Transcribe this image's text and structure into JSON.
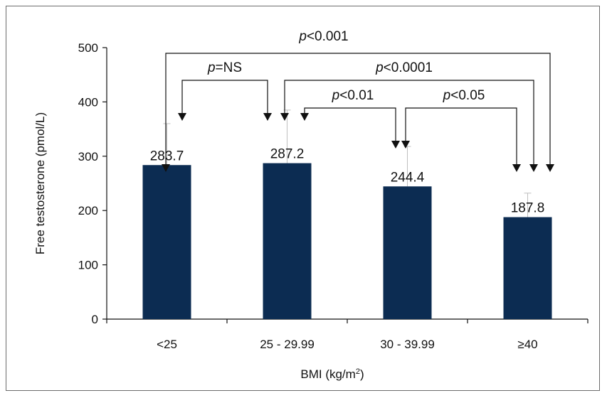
{
  "chart_data": {
    "type": "bar",
    "title": "",
    "xlabel": "BMI (kg/m²)",
    "ylabel": "Free testosterone (pmol/L)",
    "ylim": [
      0,
      500
    ],
    "yticks": [
      0,
      100,
      200,
      300,
      400,
      500
    ],
    "categories": [
      "<25",
      "25 - 29.99",
      "30 - 39.99",
      "≥40"
    ],
    "values": [
      283.7,
      287.2,
      244.4,
      187.8
    ],
    "value_labels": [
      "283.7",
      "287.2",
      "244.4",
      "187.8"
    ],
    "error_upper": [
      360,
      385,
      318,
      232
    ],
    "bar_color": "#0c2c52",
    "grid": false,
    "comparisons": [
      {
        "from": 0,
        "to": 3,
        "label_italic": "p",
        "label_rest": "<0.001"
      },
      {
        "from": 0,
        "to": 1,
        "label_italic": "p",
        "label_rest": "=NS"
      },
      {
        "from": 1,
        "to": 3,
        "label_italic": "p",
        "label_rest": "<0.0001"
      },
      {
        "from": 1,
        "to": 2,
        "label_italic": "p",
        "label_rest": "<0.01"
      },
      {
        "from": 2,
        "to": 3,
        "label_italic": "p",
        "label_rest": "<0.05"
      }
    ]
  }
}
